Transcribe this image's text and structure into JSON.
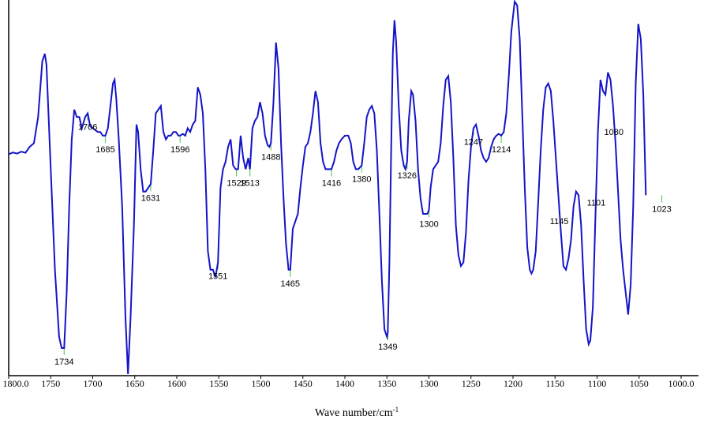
{
  "chart_data": {
    "type": "line",
    "title": "",
    "xlabel": "Wave number/cm",
    "xlabel_superscript": "-1",
    "ylabel": "",
    "x_reversed": true,
    "xlim": [
      1800,
      1000
    ],
    "ylim": [
      0,
      1
    ],
    "grid": false,
    "legend": "none",
    "colors": {
      "line": "#1414c8",
      "peak_marker": "#66cc66",
      "axis": "#000000"
    },
    "x_ticks": [
      "1800.0",
      "1750",
      "1700",
      "1650",
      "1600",
      "1550",
      "1500",
      "1450",
      "1400",
      "1350",
      "1300",
      "1250",
      "1200",
      "1150",
      "1100",
      "1050",
      "1000.0"
    ],
    "x_tick_values": [
      1800,
      1750,
      1700,
      1650,
      1600,
      1550,
      1500,
      1450,
      1400,
      1350,
      1300,
      1250,
      1200,
      1150,
      1100,
      1050,
      1000
    ],
    "peaks": [
      {
        "label": "1734",
        "x": 1734
      },
      {
        "label": "1706",
        "x": 1706
      },
      {
        "label": "1685",
        "x": 1685
      },
      {
        "label": "1631",
        "x": 1631
      },
      {
        "label": "1596",
        "x": 1596
      },
      {
        "label": "1551",
        "x": 1551
      },
      {
        "label": "1529",
        "x": 1529
      },
      {
        "label": "1513",
        "x": 1513
      },
      {
        "label": "1488",
        "x": 1488
      },
      {
        "label": "1465",
        "x": 1465
      },
      {
        "label": "1416",
        "x": 1416
      },
      {
        "label": "1380",
        "x": 1380
      },
      {
        "label": "1349",
        "x": 1349
      },
      {
        "label": "1326",
        "x": 1326
      },
      {
        "label": "1300",
        "x": 1300
      },
      {
        "label": "1247",
        "x": 1247
      },
      {
        "label": "1214",
        "x": 1214
      },
      {
        "label": "1145",
        "x": 1145
      },
      {
        "label": "1101",
        "x": 1101
      },
      {
        "label": "1080",
        "x": 1080
      },
      {
        "label": "1023",
        "x": 1023
      }
    ],
    "series": [
      {
        "values": [
          [
            1800,
            0.59
          ],
          [
            1795,
            0.595
          ],
          [
            1790,
            0.592
          ],
          [
            1785,
            0.597
          ],
          [
            1780,
            0.594
          ],
          [
            1775,
            0.61
          ],
          [
            1770,
            0.62
          ],
          [
            1765,
            0.69
          ],
          [
            1760,
            0.84
          ],
          [
            1757,
            0.86
          ],
          [
            1755,
            0.83
          ],
          [
            1750,
            0.55
          ],
          [
            1745,
            0.28
          ],
          [
            1740,
            0.1
          ],
          [
            1737,
            0.07
          ],
          [
            1734,
            0.07
          ],
          [
            1731,
            0.22
          ],
          [
            1728,
            0.45
          ],
          [
            1725,
            0.63
          ],
          [
            1722,
            0.71
          ],
          [
            1719,
            0.69
          ],
          [
            1716,
            0.69
          ],
          [
            1713,
            0.66
          ],
          [
            1709,
            0.69
          ],
          [
            1706,
            0.7
          ],
          [
            1703,
            0.665
          ],
          [
            1700,
            0.66
          ],
          [
            1697,
            0.655
          ],
          [
            1694,
            0.65
          ],
          [
            1691,
            0.65
          ],
          [
            1688,
            0.64
          ],
          [
            1685,
            0.64
          ],
          [
            1682,
            0.66
          ],
          [
            1679,
            0.72
          ],
          [
            1676,
            0.78
          ],
          [
            1674,
            0.79
          ],
          [
            1672,
            0.74
          ],
          [
            1669,
            0.63
          ],
          [
            1665,
            0.45
          ],
          [
            1661,
            0.15
          ],
          [
            1658,
            0.0
          ],
          [
            1655,
            0.15
          ],
          [
            1651,
            0.4
          ],
          [
            1648,
            0.67
          ],
          [
            1646,
            0.65
          ],
          [
            1643,
            0.55
          ],
          [
            1640,
            0.49
          ],
          [
            1637,
            0.49
          ],
          [
            1634,
            0.5
          ],
          [
            1631,
            0.51
          ],
          [
            1628,
            0.6
          ],
          [
            1625,
            0.7
          ],
          [
            1622,
            0.71
          ],
          [
            1619,
            0.72
          ],
          [
            1616,
            0.65
          ],
          [
            1613,
            0.63
          ],
          [
            1610,
            0.64
          ],
          [
            1607,
            0.64
          ],
          [
            1604,
            0.65
          ],
          [
            1601,
            0.65
          ],
          [
            1598,
            0.64
          ],
          [
            1596,
            0.64
          ],
          [
            1593,
            0.645
          ],
          [
            1590,
            0.64
          ],
          [
            1587,
            0.66
          ],
          [
            1584,
            0.65
          ],
          [
            1581,
            0.67
          ],
          [
            1578,
            0.68
          ],
          [
            1575,
            0.77
          ],
          [
            1572,
            0.75
          ],
          [
            1569,
            0.7
          ],
          [
            1566,
            0.55
          ],
          [
            1563,
            0.33
          ],
          [
            1560,
            0.28
          ],
          [
            1557,
            0.28
          ],
          [
            1554,
            0.26
          ],
          [
            1551,
            0.3
          ],
          [
            1548,
            0.5
          ],
          [
            1545,
            0.55
          ],
          [
            1542,
            0.57
          ],
          [
            1539,
            0.61
          ],
          [
            1536,
            0.63
          ],
          [
            1533,
            0.56
          ],
          [
            1530,
            0.55
          ],
          [
            1527,
            0.55
          ],
          [
            1524,
            0.64
          ],
          [
            1521,
            0.58
          ],
          [
            1518,
            0.55
          ],
          [
            1515,
            0.58
          ],
          [
            1513,
            0.55
          ],
          [
            1510,
            0.66
          ],
          [
            1507,
            0.68
          ],
          [
            1504,
            0.69
          ],
          [
            1501,
            0.73
          ],
          [
            1498,
            0.7
          ],
          [
            1495,
            0.64
          ],
          [
            1492,
            0.615
          ],
          [
            1490,
            0.61
          ],
          [
            1488,
            0.62
          ],
          [
            1485,
            0.73
          ],
          [
            1482,
            0.89
          ],
          [
            1479,
            0.82
          ],
          [
            1476,
            0.62
          ],
          [
            1473,
            0.47
          ],
          [
            1470,
            0.35
          ],
          [
            1467,
            0.28
          ],
          [
            1465,
            0.28
          ],
          [
            1462,
            0.39
          ],
          [
            1459,
            0.41
          ],
          [
            1456,
            0.43
          ],
          [
            1453,
            0.5
          ],
          [
            1450,
            0.56
          ],
          [
            1447,
            0.61
          ],
          [
            1444,
            0.62
          ],
          [
            1441,
            0.65
          ],
          [
            1438,
            0.7
          ],
          [
            1435,
            0.76
          ],
          [
            1432,
            0.73
          ],
          [
            1429,
            0.62
          ],
          [
            1426,
            0.57
          ],
          [
            1423,
            0.55
          ],
          [
            1420,
            0.55
          ],
          [
            1416,
            0.55
          ],
          [
            1413,
            0.57
          ],
          [
            1410,
            0.6
          ],
          [
            1407,
            0.62
          ],
          [
            1404,
            0.63
          ],
          [
            1400,
            0.64
          ],
          [
            1396,
            0.64
          ],
          [
            1393,
            0.62
          ],
          [
            1390,
            0.57
          ],
          [
            1387,
            0.55
          ],
          [
            1384,
            0.55
          ],
          [
            1380,
            0.56
          ],
          [
            1377,
            0.62
          ],
          [
            1374,
            0.69
          ],
          [
            1371,
            0.71
          ],
          [
            1368,
            0.72
          ],
          [
            1365,
            0.7
          ],
          [
            1362,
            0.6
          ],
          [
            1359,
            0.43
          ],
          [
            1356,
            0.25
          ],
          [
            1353,
            0.12
          ],
          [
            1350,
            0.1
          ],
          [
            1349,
            0.11
          ],
          [
            1347,
            0.3
          ],
          [
            1345,
            0.6
          ],
          [
            1343,
            0.86
          ],
          [
            1341,
            0.95
          ],
          [
            1339,
            0.89
          ],
          [
            1336,
            0.72
          ],
          [
            1333,
            0.6
          ],
          [
            1330,
            0.56
          ],
          [
            1328,
            0.55
          ],
          [
            1326,
            0.57
          ],
          [
            1324,
            0.68
          ],
          [
            1321,
            0.76
          ],
          [
            1319,
            0.75
          ],
          [
            1316,
            0.68
          ],
          [
            1313,
            0.55
          ],
          [
            1310,
            0.47
          ],
          [
            1307,
            0.43
          ],
          [
            1304,
            0.43
          ],
          [
            1302,
            0.43
          ],
          [
            1300,
            0.44
          ],
          [
            1298,
            0.5
          ],
          [
            1295,
            0.55
          ],
          [
            1292,
            0.56
          ],
          [
            1289,
            0.57
          ],
          [
            1286,
            0.62
          ],
          [
            1283,
            0.72
          ],
          [
            1280,
            0.79
          ],
          [
            1277,
            0.8
          ],
          [
            1274,
            0.73
          ],
          [
            1271,
            0.58
          ],
          [
            1268,
            0.4
          ],
          [
            1265,
            0.32
          ],
          [
            1262,
            0.29
          ],
          [
            1259,
            0.3
          ],
          [
            1256,
            0.38
          ],
          [
            1253,
            0.52
          ],
          [
            1250,
            0.61
          ],
          [
            1247,
            0.66
          ],
          [
            1244,
            0.67
          ],
          [
            1241,
            0.64
          ],
          [
            1238,
            0.6
          ],
          [
            1235,
            0.58
          ],
          [
            1232,
            0.57
          ],
          [
            1229,
            0.58
          ],
          [
            1226,
            0.61
          ],
          [
            1223,
            0.63
          ],
          [
            1220,
            0.64
          ],
          [
            1217,
            0.645
          ],
          [
            1214,
            0.64
          ],
          [
            1211,
            0.65
          ],
          [
            1208,
            0.7
          ],
          [
            1205,
            0.8
          ],
          [
            1202,
            0.92
          ],
          [
            1200,
            0.96
          ],
          [
            1198,
            1.0
          ],
          [
            1195,
            0.99
          ],
          [
            1192,
            0.9
          ],
          [
            1189,
            0.7
          ],
          [
            1186,
            0.5
          ],
          [
            1183,
            0.34
          ],
          [
            1180,
            0.28
          ],
          [
            1178,
            0.27
          ],
          [
            1176,
            0.28
          ],
          [
            1173,
            0.33
          ],
          [
            1170,
            0.46
          ],
          [
            1167,
            0.6
          ],
          [
            1164,
            0.71
          ],
          [
            1161,
            0.77
          ],
          [
            1158,
            0.78
          ],
          [
            1155,
            0.76
          ],
          [
            1152,
            0.68
          ],
          [
            1149,
            0.58
          ],
          [
            1146,
            0.48
          ],
          [
            1143,
            0.38
          ],
          [
            1140,
            0.29
          ],
          [
            1137,
            0.28
          ],
          [
            1134,
            0.31
          ],
          [
            1131,
            0.36
          ],
          [
            1128,
            0.45
          ],
          [
            1125,
            0.49
          ],
          [
            1122,
            0.48
          ],
          [
            1119,
            0.4
          ],
          [
            1116,
            0.25
          ],
          [
            1113,
            0.12
          ],
          [
            1110,
            0.08
          ],
          [
            1108,
            0.09
          ],
          [
            1105,
            0.18
          ],
          [
            1102,
            0.42
          ],
          [
            1099,
            0.65
          ],
          [
            1096,
            0.79
          ],
          [
            1093,
            0.76
          ],
          [
            1090,
            0.75
          ],
          [
            1087,
            0.81
          ],
          [
            1084,
            0.79
          ],
          [
            1081,
            0.72
          ],
          [
            1078,
            0.62
          ],
          [
            1075,
            0.49
          ],
          [
            1072,
            0.36
          ],
          [
            1069,
            0.28
          ],
          [
            1066,
            0.22
          ],
          [
            1063,
            0.16
          ],
          [
            1060,
            0.24
          ],
          [
            1057,
            0.45
          ],
          [
            1054,
            0.78
          ],
          [
            1051,
            0.94
          ],
          [
            1048,
            0.9
          ],
          [
            1045,
            0.75
          ],
          [
            1042,
            0.48
          ]
        ]
      }
    ]
  }
}
